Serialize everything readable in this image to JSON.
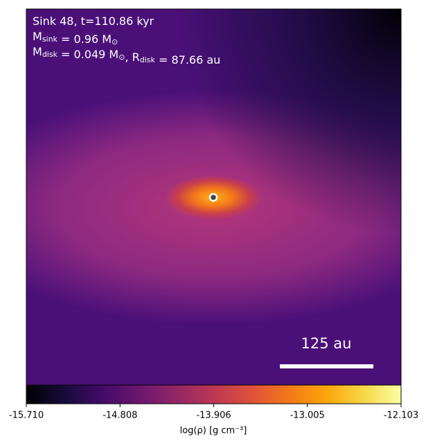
{
  "chart_data": {
    "type": "image",
    "annotations": [
      [
        {
          "text": "Sink 48, t=110.86 kyr"
        }
      ],
      [
        {
          "text": "M"
        },
        {
          "sub": "sink"
        },
        {
          "text": " = 0.96 M"
        },
        {
          "sub": "⊙"
        }
      ],
      [
        {
          "text": "M"
        },
        {
          "sub": "disk"
        },
        {
          "text": " = 0.049 M"
        },
        {
          "sub": "⊙"
        },
        {
          "text": ", R"
        },
        {
          "sub": "disk"
        },
        {
          "text": " = 87.66 au"
        }
      ]
    ],
    "scale_bar": {
      "label": "125 au"
    },
    "colorbar": {
      "cmap": "inferno",
      "lim": [
        -15.71,
        -12.103
      ],
      "ticks": [
        {
          "value": -15.71,
          "label": "-15.710"
        },
        -14.808,
        -13.906,
        -13.005,
        -12.103
      ],
      "label": "log(ρ) [g cm⁻³]"
    }
  }
}
